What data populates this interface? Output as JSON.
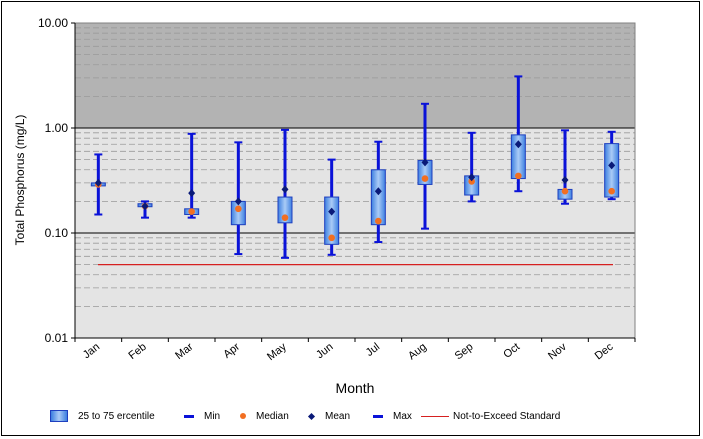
{
  "chart_data": {
    "type": "box",
    "ylabel": "Total Phosphorus (mg/L)",
    "xlabel": "Month",
    "yscale": "log",
    "ylim": [
      0.01,
      10
    ],
    "yticks": [
      "0.01",
      "0.10",
      "1.00",
      "10.00"
    ],
    "grid": true,
    "categories": [
      "Jan",
      "Feb",
      "Mar",
      "Apr",
      "May",
      "Jun",
      "Jul",
      "Aug",
      "Sep",
      "Oct",
      "Nov",
      "Dec"
    ],
    "min": [
      0.15,
      0.14,
      0.14,
      0.063,
      0.058,
      0.062,
      0.082,
      0.11,
      0.2,
      0.25,
      0.19,
      0.21
    ],
    "q25": [
      0.29,
      0.18,
      0.15,
      0.12,
      0.125,
      0.078,
      0.12,
      0.29,
      0.23,
      0.33,
      0.21,
      0.22
    ],
    "median": [
      0.29,
      0.18,
      0.16,
      0.17,
      0.14,
      0.09,
      0.13,
      0.33,
      0.31,
      0.35,
      0.25,
      0.25
    ],
    "mean": [
      0.3,
      0.18,
      0.24,
      0.2,
      0.26,
      0.16,
      0.25,
      0.47,
      0.34,
      0.7,
      0.32,
      0.44
    ],
    "q75": [
      0.3,
      0.19,
      0.17,
      0.2,
      0.22,
      0.22,
      0.4,
      0.49,
      0.35,
      0.86,
      0.26,
      0.71
    ],
    "max": [
      0.56,
      0.2,
      0.88,
      0.73,
      0.96,
      0.5,
      0.74,
      1.7,
      0.9,
      3.1,
      0.95,
      0.92
    ],
    "standard": 0.05,
    "legend": [
      "25 to 75 ercentile",
      "Min",
      "Median",
      "Mean",
      "Max",
      "Not-to-Exceed Standard"
    ],
    "colors": {
      "whisker": "#0a12d8",
      "box_edge": "#1e3fbf",
      "box_fill_mid": "#aacbf6",
      "box_fill_edge": "#3c7fe0",
      "median": "#f26f22",
      "mean": "#0a1a78",
      "standard": "#d62020",
      "plot_bg": "#e4e4e4",
      "band_bg": "#b3b3b3"
    }
  }
}
